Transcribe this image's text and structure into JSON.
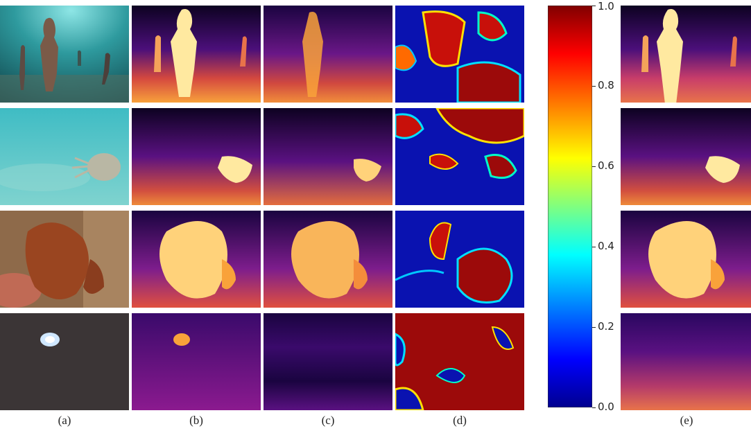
{
  "figure": {
    "column_labels": [
      "(a)",
      "(b)",
      "(c)",
      "(d)",
      "(e)"
    ],
    "colorbar_ticks": [
      "0.0",
      "0.2",
      "0.4",
      "0.6",
      "0.8",
      "1.0"
    ],
    "colormap_colors": [
      "#00008f",
      "#0000ff",
      "#00ffff",
      "#ffff00",
      "#ff0000",
      "#800000"
    ],
    "depth_colors": [
      "#0d0221",
      "#3a0a6b",
      "#8b1a8f",
      "#e0503f",
      "#f9a23a",
      "#ffe9a0"
    ],
    "rows": [
      {
        "scene": "underwater-statues"
      },
      {
        "scene": "sandy-seafloor-fish"
      },
      {
        "scene": "batfish-coral-reef"
      },
      {
        "scene": "dark-seafloor-light"
      }
    ]
  }
}
